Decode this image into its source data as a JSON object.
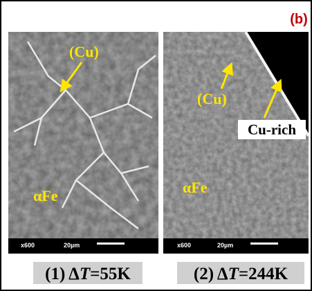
{
  "panel_label": "(b)",
  "left": {
    "labels": [
      "(Cu)",
      "αFe"
    ],
    "magnification": "x600",
    "scale": "20µm",
    "caption": {
      "prefix": "(1) Δ",
      "symbol": "T",
      "suffix": "=55K"
    }
  },
  "right": {
    "labels": [
      "(Cu)",
      "Cu-rich",
      "αFe"
    ],
    "magnification": "x600",
    "scale": "20µm",
    "caption": {
      "prefix": "(2) Δ",
      "symbol": "T",
      "suffix": "=244K"
    }
  }
}
